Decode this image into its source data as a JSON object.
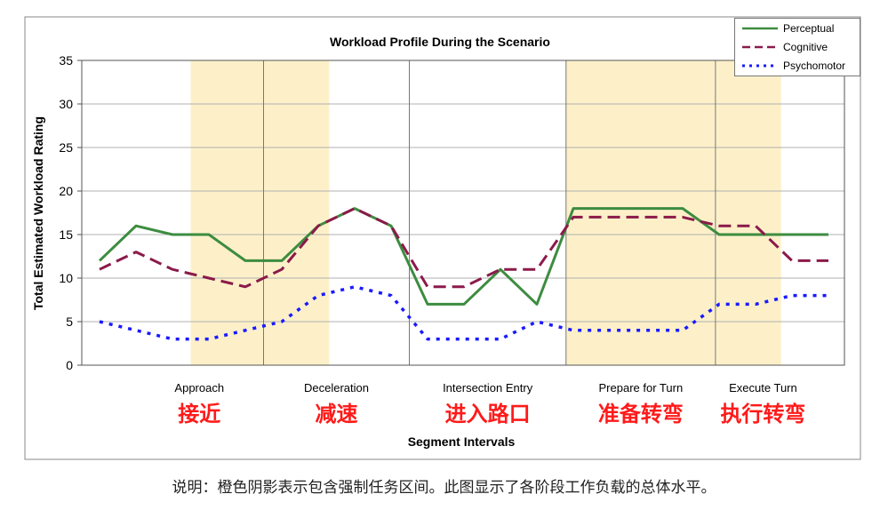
{
  "chart_data": {
    "type": "line",
    "title": "Workload Profile During the Scenario",
    "ylabel": "Total Estimated Workload Rating",
    "xlabel": "Segment Intervals",
    "ylim": [
      0,
      35
    ],
    "y_ticks": [
      0,
      5,
      10,
      15,
      20,
      25,
      30,
      35
    ],
    "grid": "horizontal",
    "legend_position": "top-right",
    "x_points": 21,
    "series": [
      {
        "name": "Perceptual",
        "color": "#3d8c40",
        "style": "solid",
        "values": [
          12,
          16,
          15,
          15,
          12,
          12,
          16,
          18,
          16,
          7,
          7,
          11,
          7,
          18,
          18,
          18,
          18,
          15,
          15,
          15,
          15
        ]
      },
      {
        "name": "Cognitive",
        "color": "#8b1a4a",
        "style": "dashed",
        "values": [
          11,
          13,
          11,
          10,
          9,
          11,
          16,
          18,
          16,
          9,
          9,
          11,
          11,
          17,
          17,
          17,
          17,
          16,
          16,
          12,
          12
        ]
      },
      {
        "name": "Psychomotor",
        "color": "#1a1aff",
        "style": "dotted",
        "values": [
          5,
          4,
          3,
          3,
          4,
          5,
          8,
          9,
          8,
          3,
          3,
          3,
          5,
          4,
          4,
          4,
          4,
          7,
          7,
          8,
          8
        ]
      }
    ],
    "shaded_intervals": [
      [
        2.5,
        6.3
      ],
      [
        12.8,
        18.7
      ]
    ],
    "segment_dividers": [
      4.5,
      8.5,
      12.8,
      16.9
    ],
    "segments": [
      {
        "label": "Approach",
        "label_cn": "接近"
      },
      {
        "label": "Deceleration",
        "label_cn": "减速"
      },
      {
        "label": "Intersection Entry",
        "label_cn": "进入路口"
      },
      {
        "label": "Prepare for Turn",
        "label_cn": "准备转弯"
      },
      {
        "label": "Execute Turn",
        "label_cn": "执行转弯"
      }
    ],
    "shade_color": "#fdf0c9"
  },
  "caption": "说明：橙色阴影表示包含强制任务区间。此图显示了各阶段工作负载的总体水平。"
}
